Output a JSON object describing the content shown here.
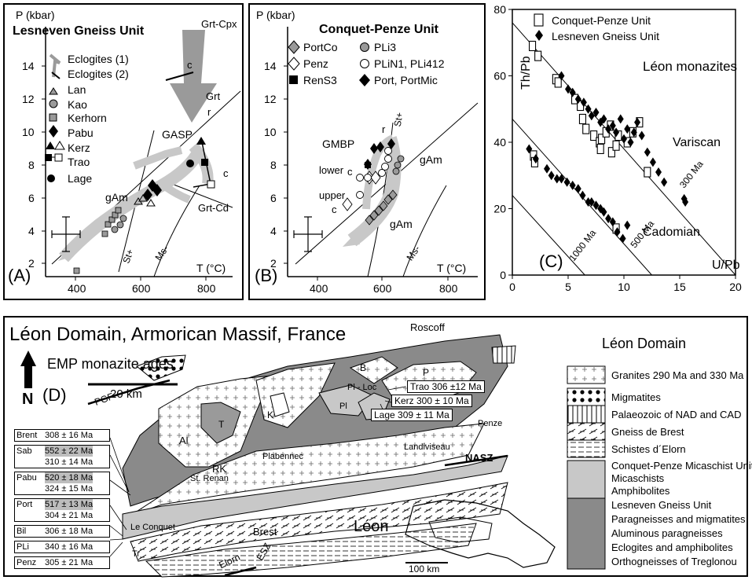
{
  "panelA": {
    "ylabel": "P (kbar)",
    "title": "Lesneven Gneiss Unit",
    "xlabel": "T (°C)",
    "letter": "(A)",
    "yticks": [
      "2",
      "4",
      "6",
      "8",
      "10",
      "12",
      "14"
    ],
    "xticks": [
      "400",
      "600",
      "800"
    ],
    "legend": [
      "Eclogites (1)",
      "Eclogites (2)",
      "Lan",
      "Kao",
      "Kerhorn",
      "Pabu",
      "Kerz",
      "Trao",
      "Lage"
    ],
    "labels": {
      "grtcpx": "Grt-Cpx",
      "c1": "c",
      "grt": "Grt",
      "r": "r",
      "gasp": "GASP",
      "c2": "c",
      "grtcd": "Grt-Cd",
      "gam": "gAm",
      "st": "St+",
      "ms": "Ms-"
    }
  },
  "panelB": {
    "ylabel": "P (kbar)",
    "title": "Conquet-Penze Unit",
    "xlabel": "T (°C)",
    "letter": "(B)",
    "yticks": [
      "2",
      "4",
      "6",
      "8",
      "10",
      "12",
      "14"
    ],
    "xticks": [
      "400",
      "600",
      "800"
    ],
    "legend": [
      "PortCo",
      "Penz",
      "RenS3",
      "PLi3",
      "PLiN1, PLi412",
      "Port, PortMic"
    ],
    "labels": {
      "gmbp": "GMBP",
      "r": "r",
      "lower": "lower",
      "c1": "c",
      "upper": "upper",
      "c2": "c",
      "gam1": "gAm",
      "gam2": "gAm",
      "st": "St+",
      "ms": "Ms-"
    }
  },
  "panelC": {
    "ylabel": "Th/Pb",
    "xlabel": "U/Pb",
    "title": "Léon monazites",
    "letter": "(C)",
    "legend": [
      "Conquet-Penze Unit",
      "Lesneven Gneiss Unit"
    ],
    "labels": {
      "variscan": "Variscan",
      "cadomian": "Cadomian",
      "l300": "300 Ma",
      "l500": "500 Ma",
      "l1000": "1000 Ma"
    },
    "yticks": [
      "0",
      "20",
      "40",
      "60",
      "80"
    ],
    "xticks": [
      "0",
      "5",
      "10",
      "15",
      "20"
    ]
  },
  "chart_data": {
    "type": "scatter",
    "title": "Léon monazites",
    "xlabel": "U/Pb",
    "ylabel": "Th/Pb",
    "xlim": [
      0,
      20
    ],
    "ylim": [
      0,
      80
    ],
    "series": [
      {
        "name": "Conquet-Penze Unit",
        "marker": "open-square",
        "x": [
          1.8,
          2.3,
          3.9,
          4.1,
          5.6,
          6.1,
          6.3,
          6.6,
          7.3,
          7.8,
          7.9,
          8.0,
          8.4,
          8.8,
          8.9,
          9.3,
          9.5,
          10.3,
          10.8,
          11.4,
          12.1,
          1.9,
          2.0,
          9.3
        ],
        "y": [
          69,
          66,
          59,
          58,
          53,
          51,
          47,
          44,
          42,
          40,
          38,
          41,
          43,
          45,
          37,
          39,
          42,
          40,
          43,
          46,
          31,
          36,
          34,
          14
        ]
      },
      {
        "name": "Lesneven Gneiss Unit",
        "marker": "filled-diamond",
        "x": [
          4.4,
          5.0,
          5.4,
          5.9,
          6.4,
          6.8,
          7.1,
          7.5,
          7.9,
          8.2,
          8.6,
          9.0,
          9.3,
          9.7,
          10.0,
          10.3,
          10.6,
          10.9,
          11.2,
          11.6,
          12.1,
          12.6,
          13.1,
          13.6,
          15.5,
          15.4,
          1.5,
          2.1,
          3.1,
          3.5,
          4.0,
          4.4,
          4.9,
          5.4,
          5.9,
          6.3,
          6.8,
          7.1,
          7.5,
          7.9,
          8.2,
          8.6,
          9.0,
          9.4,
          9.9,
          10.3
        ],
        "y": [
          60,
          56,
          55,
          53,
          52,
          50,
          48,
          49,
          46,
          47,
          44,
          45,
          43,
          47,
          41,
          44,
          40,
          43,
          46,
          42,
          37,
          34,
          31,
          28,
          22,
          23,
          38,
          35,
          32,
          30,
          29,
          29,
          28,
          27,
          26,
          24,
          22,
          22,
          21,
          20,
          19,
          17,
          16,
          13,
          11,
          15
        ]
      }
    ],
    "reference_lines": [
      "300 Ma",
      "500 Ma",
      "1000 Ma"
    ],
    "annotations": [
      "Variscan",
      "Cadomian"
    ],
    "legend_position": "top-right"
  },
  "panelD": {
    "title": "Léon Domain, Armorican Massif, France",
    "subtitle": "EMP monazite ages",
    "scale": "20 km",
    "north": "N",
    "letter": "(D)",
    "ages_left": [
      {
        "k": "Brent",
        "a": [
          "308 ± 16 Ma"
        ],
        "hl": [
          false
        ]
      },
      {
        "k": "Sab",
        "a": [
          "552 ± 22 Ma",
          "310 ± 14 Ma"
        ],
        "hl": [
          true,
          false
        ]
      },
      {
        "k": "Pabu",
        "a": [
          "520 ± 18 Ma",
          "324 ± 15 Ma"
        ],
        "hl": [
          true,
          false
        ]
      },
      {
        "k": "Port",
        "a": [
          "517 ± 13 Ma",
          "304 ± 21 Ma"
        ],
        "hl": [
          true,
          false
        ]
      },
      {
        "k": "Bil",
        "a": [
          "306 ± 18 Ma"
        ],
        "hl": [
          false
        ]
      },
      {
        "k": "PLi",
        "a": [
          "340 ± 16 Ma"
        ],
        "hl": [
          false
        ]
      },
      {
        "k": "Penz",
        "a": [
          "305 ± 21 Ma"
        ],
        "hl": [
          false
        ]
      }
    ],
    "ages_right": [
      "Trao 306 ±12 Ma",
      "Kerz 300 ± 10 Ma",
      "Lage 309 ± 11 Ma"
    ],
    "places": {
      "roscoff": "Roscoff",
      "penze": "Penze",
      "plabennec": "Plabennec",
      "strenan": "St. Renan",
      "landiviseau": "Landiviseau",
      "leconquet": "Le Conquet",
      "brest": "Brest",
      "elorn": "Elorn",
      "esz": "ESZ",
      "nasz": "NASZ",
      "pgf": "PGF",
      "leon": "Léon",
      "inset_scale": "100 km",
      "al": "Al",
      "rk": "RK",
      "k": "K",
      "b": "B",
      "p": "P",
      "t": "T",
      "pl": "Pl",
      "plloc": "Pl - Loc",
      "tr": "Tr"
    },
    "legend_title": "Léon Domain",
    "legend": [
      {
        "key": "granites",
        "lines": [
          "Granites 290 Ma and 330 Ma"
        ]
      },
      {
        "key": "migmatites",
        "lines": [
          "Migmatites"
        ]
      },
      {
        "key": "palaeozoic",
        "lines": [
          "Palaeozoic of NAD and CAD"
        ]
      },
      {
        "key": "gneiss_brest",
        "lines": [
          "Gneiss de Brest"
        ]
      },
      {
        "key": "schistes",
        "lines": [
          "Schistes d´Elorn"
        ]
      },
      {
        "key": "conquet",
        "lines": [
          "Conquet-Penze Micaschist Unit",
          "Micaschists",
          "Amphibolites"
        ]
      },
      {
        "key": "lesneven",
        "lines": [
          "Lesneven Gneiss Unit",
          "Paragneisses and migmatites",
          "Aluminous paragneisses",
          "Eclogites and amphibolites",
          "Orthogneisses of Treglonou"
        ]
      }
    ]
  },
  "colors": {
    "gray_light": "#c8c8c8",
    "gray_mid": "#9a9a9a",
    "gray_dark": "#6e6e6e"
  }
}
